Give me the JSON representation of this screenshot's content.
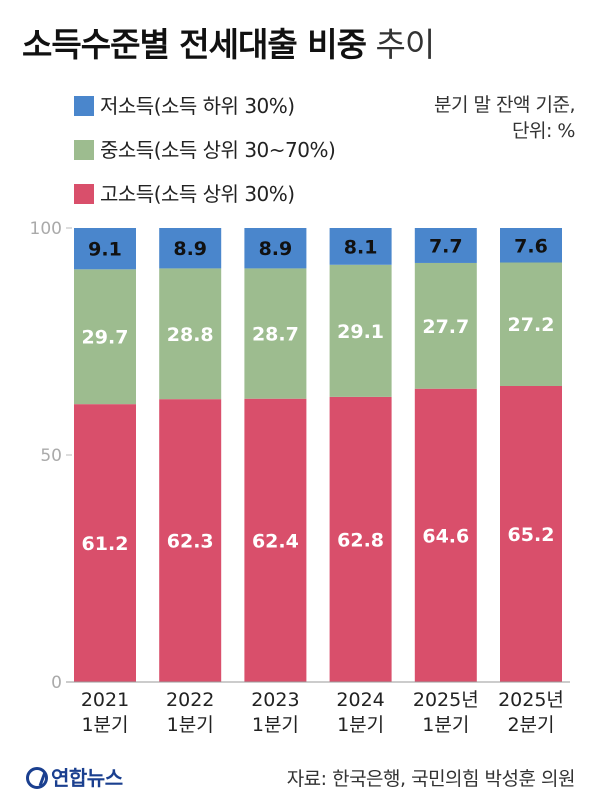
{
  "title_bold": "소득수준별 전세대출 비중",
  "title_light": "추이",
  "note_line1": "분기 말 잔액 기준,",
  "note_line2": "단위: %",
  "source": "자료: 한국은행, 국민의힘 박성훈 의원",
  "logo_text": "연합뉴스",
  "chart_data": {
    "type": "bar",
    "stacked": true,
    "title": "소득수준별 전세대출 비중 추이",
    "categories": [
      [
        "2021",
        "1분기"
      ],
      [
        "2022",
        "1분기"
      ],
      [
        "2023",
        "1분기"
      ],
      [
        "2024",
        "1분기"
      ],
      [
        "2025년",
        "1분기"
      ],
      [
        "2025년",
        "2분기"
      ]
    ],
    "series": [
      {
        "name": "고소득(소득 상위 30%)",
        "color": "#d94f6b",
        "values": [
          61.2,
          62.3,
          62.4,
          62.8,
          64.6,
          65.2
        ]
      },
      {
        "name": "중소득(소득 상위 30~70%)",
        "color": "#9dbc8f",
        "values": [
          29.7,
          28.8,
          28.7,
          29.1,
          27.7,
          27.2
        ]
      },
      {
        "name": "저소득(소득 하위 30%)",
        "color": "#4a86cc",
        "values": [
          9.1,
          8.9,
          8.9,
          8.1,
          7.7,
          7.6
        ]
      }
    ],
    "legend_order": [
      2,
      1,
      0
    ],
    "y_ticks": [
      "0",
      "50",
      "100"
    ],
    "ylim": [
      0,
      100
    ],
    "grid": false,
    "legend_position": "top-left"
  }
}
